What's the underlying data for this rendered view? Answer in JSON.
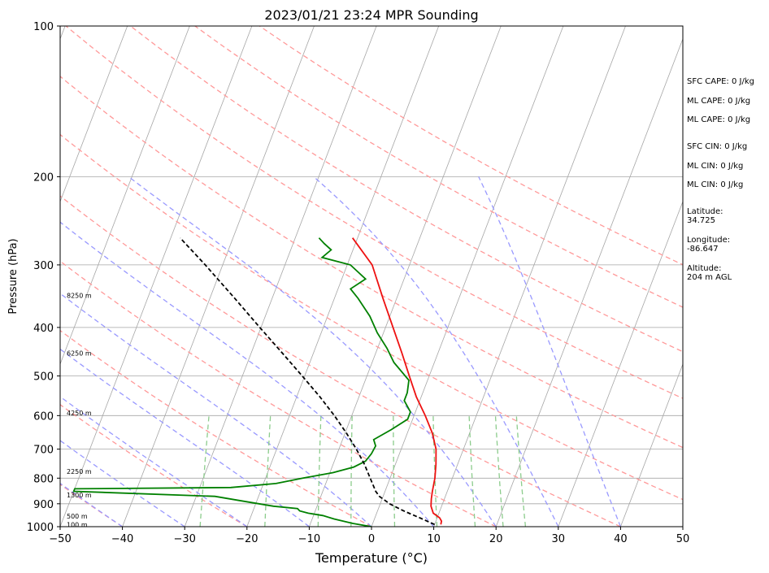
{
  "chart_data": {
    "type": "line",
    "title": "2023/01/21 23:24 MPR Sounding",
    "xlabel": "Temperature (°C)",
    "ylabel": "Pressure (hPa)",
    "xlim": [
      -50,
      50
    ],
    "ylim": [
      1000,
      100
    ],
    "y_scale": "log",
    "grid": true,
    "xticks": [
      "−50",
      "−40",
      "−30",
      "−20",
      "−10",
      "0",
      "10",
      "20",
      "30",
      "40",
      "50"
    ],
    "yticks": [
      {
        "p": 100,
        "label": "100"
      },
      {
        "p": 200,
        "label": "200"
      },
      {
        "p": 300,
        "label": "300"
      },
      {
        "p": 400,
        "label": "400"
      },
      {
        "p": 500,
        "label": "500"
      },
      {
        "p": 600,
        "label": "600"
      },
      {
        "p": 700,
        "label": "700"
      },
      {
        "p": 800,
        "label": "800"
      },
      {
        "p": 900,
        "label": "900"
      },
      {
        "p": 1000,
        "label": "1000"
      }
    ],
    "height_labels": [
      {
        "p": 990,
        "label": "100 m"
      },
      {
        "p": 952,
        "label": "500 m"
      },
      {
        "p": 865,
        "label": "1300 m"
      },
      {
        "p": 775,
        "label": "2250 m"
      },
      {
        "p": 592,
        "label": "4250 m"
      },
      {
        "p": 450,
        "label": "6250 m"
      },
      {
        "p": 345,
        "label": "8250 m"
      }
    ],
    "series": [
      {
        "key": "temperature",
        "color": "#ee1111",
        "style": "solid",
        "points": [
          [
            990,
            11.0
          ],
          [
            975,
            10.9
          ],
          [
            960,
            10.4
          ],
          [
            940,
            9.1
          ],
          [
            910,
            8.3
          ],
          [
            880,
            7.9
          ],
          [
            850,
            7.6
          ],
          [
            800,
            7.2
          ],
          [
            750,
            6.5
          ],
          [
            700,
            5.6
          ],
          [
            650,
            4.0
          ],
          [
            600,
            1.8
          ],
          [
            550,
            -0.8
          ],
          [
            500,
            -3.2
          ],
          [
            450,
            -5.8
          ],
          [
            400,
            -8.8
          ],
          [
            350,
            -12.2
          ],
          [
            300,
            -16.0
          ],
          [
            265,
            -20.8
          ]
        ]
      },
      {
        "key": "dewpoint",
        "color": "#008000",
        "style": "solid",
        "points": [
          [
            1000,
            0.0
          ],
          [
            985,
            -3.2
          ],
          [
            965,
            -6.5
          ],
          [
            950,
            -8.5
          ],
          [
            940,
            -11.0
          ],
          [
            930,
            -12.5
          ],
          [
            920,
            -13.0
          ],
          [
            910,
            -17.0
          ],
          [
            890,
            -22.0
          ],
          [
            870,
            -27.0
          ],
          [
            850,
            -50.0
          ],
          [
            840,
            -50.0
          ],
          [
            835,
            -25.0
          ],
          [
            820,
            -18.0
          ],
          [
            800,
            -14.0
          ],
          [
            780,
            -9.5
          ],
          [
            760,
            -6.5
          ],
          [
            740,
            -5.0
          ],
          [
            715,
            -4.5
          ],
          [
            690,
            -4.3
          ],
          [
            670,
            -5.0
          ],
          [
            640,
            -2.8
          ],
          [
            610,
            -0.8
          ],
          [
            590,
            -0.8
          ],
          [
            560,
            -2.5
          ],
          [
            540,
            -2.5
          ],
          [
            510,
            -3.0
          ],
          [
            470,
            -6.5
          ],
          [
            440,
            -8.5
          ],
          [
            410,
            -11.0
          ],
          [
            380,
            -13.2
          ],
          [
            350,
            -16.2
          ],
          [
            335,
            -18.0
          ],
          [
            320,
            -16.2
          ],
          [
            300,
            -19.5
          ],
          [
            290,
            -24.5
          ],
          [
            280,
            -23.5
          ],
          [
            272,
            -25.0
          ],
          [
            265,
            -26.2
          ]
        ]
      },
      {
        "key": "parcel",
        "color": "#000000",
        "style": "dashed",
        "points": [
          [
            990,
            10.0
          ],
          [
            960,
            7.2
          ],
          [
            930,
            4.2
          ],
          [
            900,
            1.5
          ],
          [
            870,
            -0.6
          ],
          [
            850,
            -1.5
          ],
          [
            800,
            -3.2
          ],
          [
            750,
            -5.0
          ],
          [
            700,
            -7.2
          ],
          [
            650,
            -9.8
          ],
          [
            600,
            -12.8
          ],
          [
            550,
            -16.3
          ],
          [
            500,
            -20.4
          ],
          [
            450,
            -25.0
          ],
          [
            400,
            -30.2
          ],
          [
            350,
            -36.0
          ],
          [
            300,
            -42.8
          ],
          [
            265,
            -48.5
          ]
        ]
      }
    ],
    "dry_adiabat_theta_K": [
      -60,
      -40,
      -20,
      0,
      20,
      40,
      60,
      80,
      100,
      120,
      140,
      160
    ],
    "moist_adiabat_start_C": [
      -50,
      -40,
      -30,
      -20,
      -10,
      0,
      10,
      20,
      30,
      40
    ],
    "mixing_ratio_gkg": [
      0.4,
      1,
      2,
      3,
      5,
      8,
      12,
      16,
      20
    ],
    "colors": {
      "isotherm": "#a6a6a6",
      "dry_adiabat": "#ff9999",
      "moist_adiabat": "#9999ff",
      "mixing_ratio": "#8ccc8c",
      "axes": "#000000"
    }
  },
  "stats": [
    {
      "label": "SFC CAPE: 0 J/kg"
    },
    {
      "label": "ML CAPE: 0 J/kg"
    },
    {
      "label": "ML CAPE: 0 J/kg"
    },
    {
      "label": "SFC CIN: 0 J/kg"
    },
    {
      "label": "ML CIN: 0 J/kg"
    },
    {
      "label": "ML CIN: 0 J/kg"
    },
    {
      "label": "Latitude:",
      "value": "34.725"
    },
    {
      "label": "Longitude:",
      "value": "-86.647"
    },
    {
      "label": "Altitude:",
      "value": "204 m AGL"
    }
  ]
}
